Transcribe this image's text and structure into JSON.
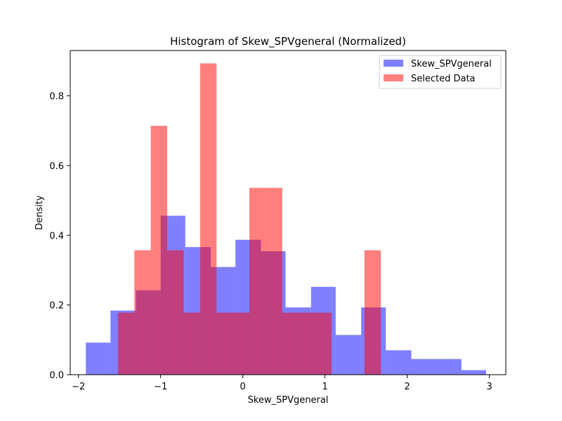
{
  "chart_data": {
    "type": "histogram",
    "title": "Histogram of Skew_SPVgeneral (Normalized)",
    "xlabel": "Skew_SPVgeneral",
    "ylabel": "Density",
    "xlim": [
      -2.1,
      3.2
    ],
    "ylim": [
      0,
      0.93
    ],
    "x_ticks": [
      -2,
      -1,
      0,
      1,
      2,
      3
    ],
    "y_ticks": [
      0.0,
      0.2,
      0.4,
      0.6,
      0.8
    ],
    "y_tick_labels": [
      "0.0",
      "0.2",
      "0.4",
      "0.6",
      "0.8"
    ],
    "grid": false,
    "legend_position": "top-right",
    "series": [
      {
        "name": "Skew_SPVgeneral",
        "color": "#0000ff",
        "alpha": 0.5,
        "bins": [
          {
            "x0": -1.91,
            "x1": -1.61,
            "value": 0.092
          },
          {
            "x0": -1.61,
            "x1": -1.3,
            "value": 0.184
          },
          {
            "x0": -1.3,
            "x1": -1.0,
            "value": 0.242
          },
          {
            "x0": -1.0,
            "x1": -0.7,
            "value": 0.456
          },
          {
            "x0": -0.7,
            "x1": -0.39,
            "value": 0.366
          },
          {
            "x0": -0.39,
            "x1": -0.09,
            "value": 0.309
          },
          {
            "x0": -0.09,
            "x1": 0.22,
            "value": 0.387
          },
          {
            "x0": 0.22,
            "x1": 0.52,
            "value": 0.354
          },
          {
            "x0": 0.52,
            "x1": 0.83,
            "value": 0.193
          },
          {
            "x0": 0.83,
            "x1": 1.13,
            "value": 0.252
          },
          {
            "x0": 1.13,
            "x1": 1.44,
            "value": 0.114
          },
          {
            "x0": 1.44,
            "x1": 1.74,
            "value": 0.193
          },
          {
            "x0": 1.74,
            "x1": 2.05,
            "value": 0.07
          },
          {
            "x0": 2.05,
            "x1": 2.35,
            "value": 0.045
          },
          {
            "x0": 2.35,
            "x1": 2.66,
            "value": 0.045
          },
          {
            "x0": 2.66,
            "x1": 2.96,
            "value": 0.013
          }
        ]
      },
      {
        "name": "Selected Data",
        "color": "#ff0000",
        "alpha": 0.5,
        "bins": [
          {
            "x0": -1.52,
            "x1": -1.32,
            "value": 0.178
          },
          {
            "x0": -1.32,
            "x1": -1.12,
            "value": 0.357
          },
          {
            "x0": -1.12,
            "x1": -0.92,
            "value": 0.714
          },
          {
            "x0": -0.92,
            "x1": -0.72,
            "value": 0.357
          },
          {
            "x0": -0.72,
            "x1": -0.52,
            "value": 0.178
          },
          {
            "x0": -0.52,
            "x1": -0.32,
            "value": 0.893
          },
          {
            "x0": -0.32,
            "x1": -0.12,
            "value": 0.178
          },
          {
            "x0": -0.12,
            "x1": 0.08,
            "value": 0.178
          },
          {
            "x0": 0.08,
            "x1": 0.28,
            "value": 0.536
          },
          {
            "x0": 0.28,
            "x1": 0.48,
            "value": 0.536
          },
          {
            "x0": 0.48,
            "x1": 0.68,
            "value": 0.178
          },
          {
            "x0": 0.68,
            "x1": 0.88,
            "value": 0.178
          },
          {
            "x0": 0.88,
            "x1": 1.08,
            "value": 0.178
          },
          {
            "x0": 1.48,
            "x1": 1.68,
            "value": 0.357
          }
        ]
      }
    ]
  }
}
